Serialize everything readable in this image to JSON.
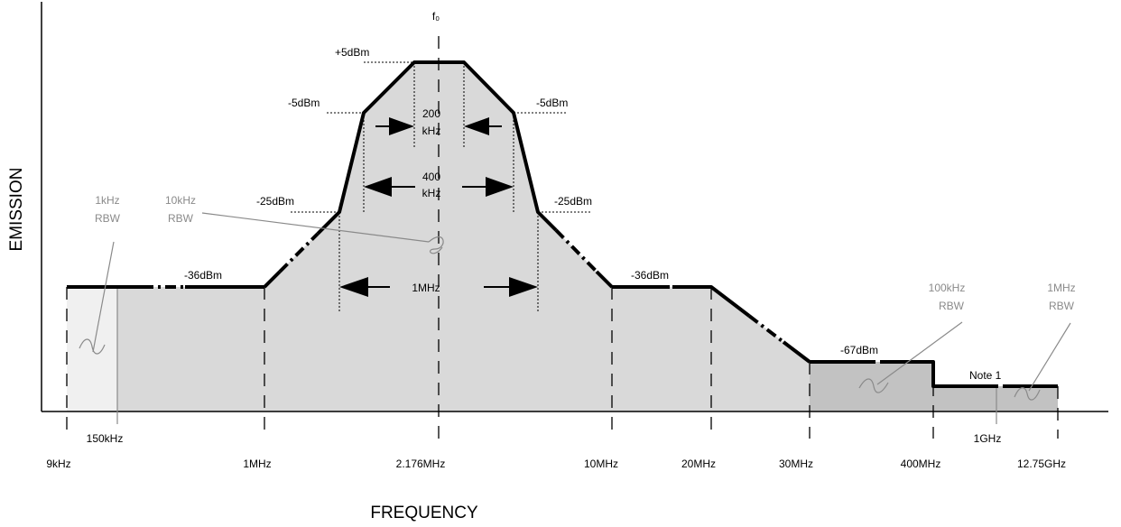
{
  "axes": {
    "x_title": "FREQUENCY",
    "y_title": "EMISSION"
  },
  "freq_ticks": [
    "9kHz",
    "150kHz",
    "1MHz",
    "2.176MHz",
    "10MHz",
    "20MHz",
    "30MHz",
    "400MHz",
    "1GHz",
    "12.75GHz"
  ],
  "center_label": "f₀",
  "level_labels": {
    "plus5": "+5dBm",
    "minus5_left": "-5dBm",
    "minus5_right": "-5dBm",
    "minus25_left": "-25dBm",
    "minus25_right": "-25dBm",
    "minus36_left": "-36dBm",
    "minus36_right": "-36dBm",
    "minus67": "-67dBm",
    "note": "Note 1"
  },
  "bandwidth_labels": {
    "bw200": [
      "200",
      "kHz"
    ],
    "bw400": [
      "400",
      "kHz"
    ],
    "bw1m": "1MHz"
  },
  "rbw_labels": {
    "rbw_1khz": [
      "1kHz",
      "RBW"
    ],
    "rbw_10khz": [
      "10kHz",
      "RBW"
    ],
    "rbw_100khz": [
      "100kHz",
      "RBW"
    ],
    "rbw_1mhz": [
      "1MHz",
      "RBW"
    ]
  },
  "colors": {
    "fill_light": "#f0f0f0",
    "fill_mid": "#d9d9d9",
    "fill_dark": "#c2c2c2",
    "gray_text": "#8a8a8a"
  }
}
